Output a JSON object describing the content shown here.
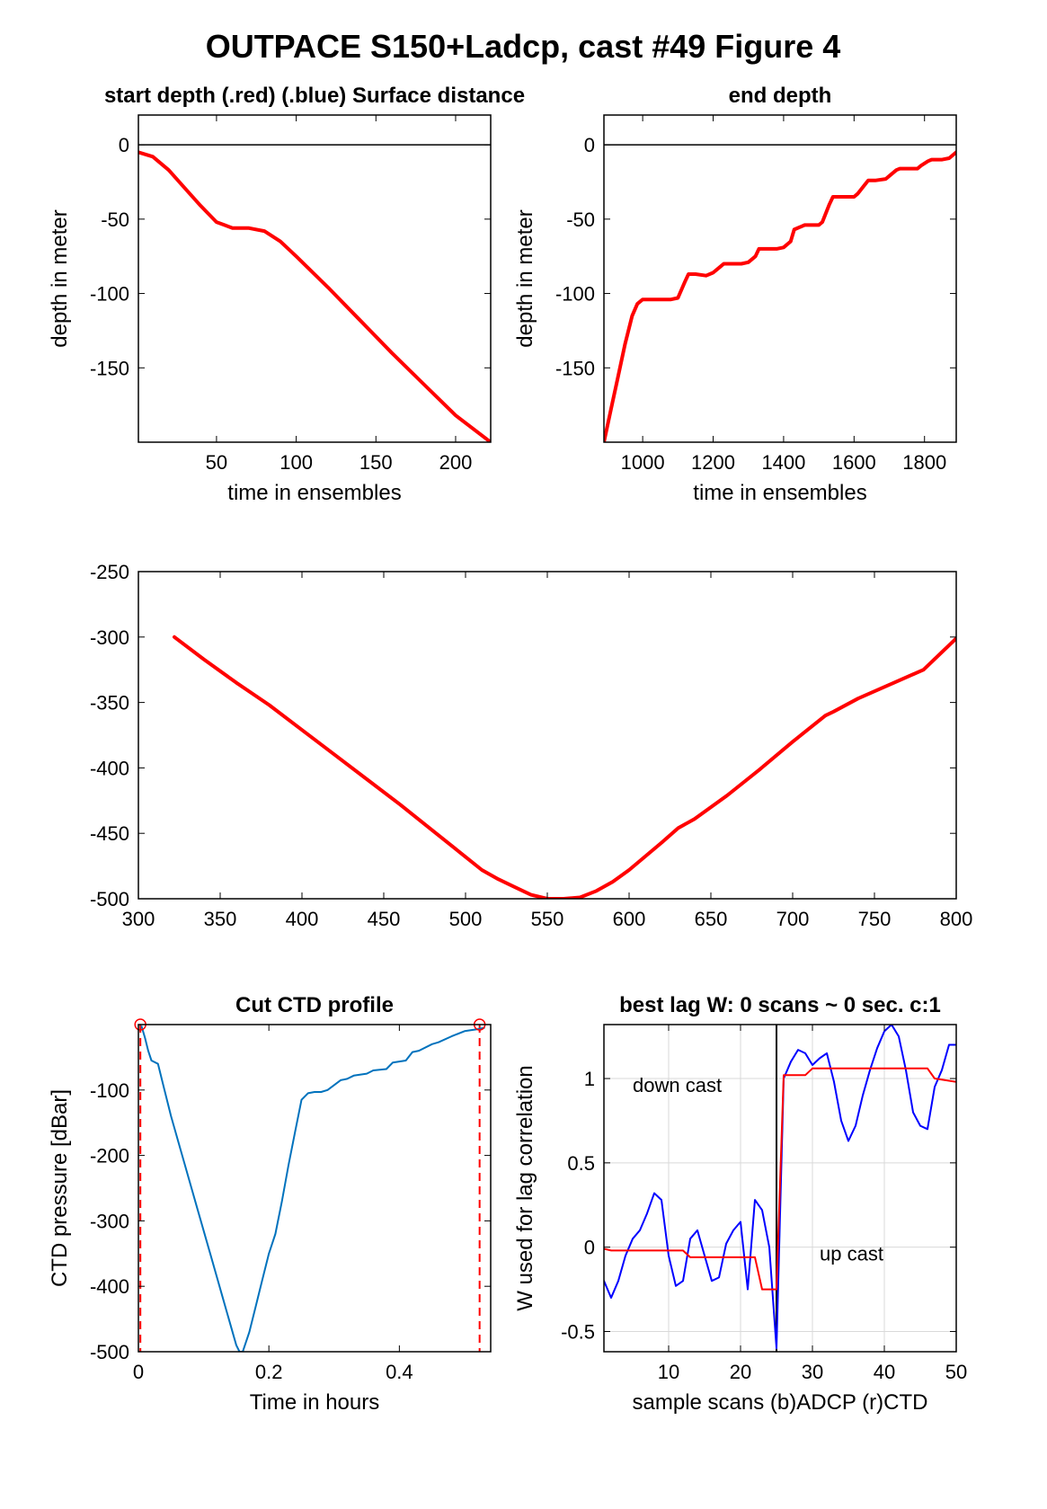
{
  "figure": {
    "title": "OUTPACE S150+Ladcp, cast #49   Figure 4"
  },
  "chart_data": [
    {
      "id": "p1",
      "type": "line",
      "title": "start depth (.red) (.blue) Surface distance",
      "xlabel": "time in ensembles",
      "ylabel": "depth in meter",
      "xlim": [
        1,
        222
      ],
      "ylim": [
        -200,
        20
      ],
      "xticks": [
        50,
        100,
        150,
        200
      ],
      "yticks": [
        0,
        -50,
        -100,
        -150
      ],
      "grid": false,
      "hline": 0,
      "series": [
        {
          "color": "#ff0000",
          "width": 4,
          "x": [
            1,
            10,
            20,
            30,
            40,
            50,
            55,
            60,
            70,
            80,
            90,
            100,
            120,
            140,
            160,
            180,
            200,
            222
          ],
          "y": [
            -5,
            -8,
            -17,
            -29,
            -41,
            -52,
            -54,
            -56,
            -56,
            -58,
            -65,
            -75,
            -96,
            -118,
            -140,
            -161,
            -182,
            -200
          ]
        }
      ]
    },
    {
      "id": "p2",
      "type": "line",
      "title": "end depth",
      "xlabel": "time in ensembles",
      "ylabel": "depth in meter",
      "xlim": [
        890,
        1890
      ],
      "ylim": [
        -200,
        20
      ],
      "xticks": [
        1000,
        1200,
        1400,
        1600,
        1800
      ],
      "yticks": [
        0,
        -50,
        -100,
        -150
      ],
      "grid": false,
      "hline": 0,
      "series": [
        {
          "color": "#ff0000",
          "width": 4,
          "x": [
            890,
            910,
            930,
            950,
            970,
            985,
            1000,
            1010,
            1080,
            1100,
            1120,
            1130,
            1150,
            1180,
            1200,
            1220,
            1230,
            1250,
            1280,
            1300,
            1320,
            1330,
            1350,
            1380,
            1400,
            1420,
            1430,
            1460,
            1500,
            1510,
            1530,
            1540,
            1560,
            1600,
            1610,
            1630,
            1640,
            1660,
            1690,
            1700,
            1720,
            1730,
            1750,
            1780,
            1790,
            1810,
            1820,
            1850,
            1870,
            1890
          ],
          "y": [
            -200,
            -178,
            -156,
            -134,
            -115,
            -107,
            -104,
            -104,
            -104,
            -103,
            -92,
            -87,
            -87,
            -88,
            -86,
            -82,
            -80,
            -80,
            -80,
            -79,
            -75,
            -70,
            -70,
            -70,
            -69,
            -65,
            -57,
            -54,
            -54,
            -52,
            -40,
            -35,
            -35,
            -35,
            -33,
            -27,
            -24,
            -24,
            -23,
            -21,
            -17,
            -16,
            -16,
            -16,
            -14,
            -11,
            -10,
            -10,
            -9,
            -5
          ]
        }
      ]
    },
    {
      "id": "p3",
      "type": "line",
      "title": "",
      "xlabel": "",
      "ylabel": "",
      "xlim": [
        300,
        800
      ],
      "ylim": [
        -500,
        -250
      ],
      "xticks": [
        300,
        350,
        400,
        450,
        500,
        550,
        600,
        650,
        700,
        750,
        800
      ],
      "yticks": [
        -250,
        -300,
        -350,
        -400,
        -450,
        -500
      ],
      "grid": false,
      "series": [
        {
          "color": "#ff0000",
          "width": 4,
          "x": [
            322,
            340,
            360,
            380,
            400,
            420,
            440,
            460,
            480,
            500,
            510,
            520,
            530,
            540,
            550,
            560,
            570,
            580,
            590,
            600,
            620,
            630,
            640,
            660,
            680,
            700,
            720,
            725,
            740,
            760,
            780,
            800
          ],
          "y": [
            -300,
            -317,
            -335,
            -352,
            -371,
            -390,
            -409,
            -428,
            -448,
            -468,
            -478,
            -485,
            -491,
            -497,
            -500,
            -500,
            -499,
            -494,
            -487,
            -478,
            -457,
            -446,
            -439,
            -421,
            -401,
            -380,
            -360,
            -357,
            -347,
            -336,
            -325,
            -301
          ]
        }
      ]
    },
    {
      "id": "p4",
      "type": "line",
      "title": "Cut CTD profile",
      "xlabel": "Time in hours",
      "ylabel": "CTD pressure [dBar]",
      "xlim": [
        0,
        0.54
      ],
      "ylim": [
        -500,
        0
      ],
      "xticks": [
        0,
        0.2,
        0.4
      ],
      "xticklabels": [
        "0",
        "0.2",
        "0.4"
      ],
      "yticks": [
        -100,
        -200,
        -300,
        -400,
        -500
      ],
      "grid": false,
      "series": [
        {
          "color": "#0072bd",
          "width": 2,
          "x": [
            0.005,
            0.01,
            0.015,
            0.02,
            0.03,
            0.04,
            0.05,
            0.07,
            0.09,
            0.11,
            0.13,
            0.15,
            0.155,
            0.16,
            0.17,
            0.18,
            0.19,
            0.2,
            0.21,
            0.22,
            0.23,
            0.24,
            0.25,
            0.26,
            0.27,
            0.28,
            0.29,
            0.31,
            0.32,
            0.33,
            0.35,
            0.36,
            0.38,
            0.39,
            0.41,
            0.42,
            0.43,
            0.45,
            0.46,
            0.48,
            0.5,
            0.52,
            0.53
          ],
          "y": [
            -3,
            -20,
            -40,
            -55,
            -60,
            -100,
            -140,
            -210,
            -280,
            -350,
            -420,
            -490,
            -500,
            -500,
            -470,
            -430,
            -390,
            -350,
            -320,
            -270,
            -215,
            -165,
            -115,
            -105,
            -103,
            -103,
            -100,
            -85,
            -83,
            -78,
            -75,
            -70,
            -68,
            -58,
            -55,
            -42,
            -40,
            -30,
            -27,
            -18,
            -10,
            -7,
            -5
          ]
        }
      ],
      "vlines": [
        {
          "x": 0.003,
          "color": "#ff0000"
        },
        {
          "x": 0.523,
          "color": "#ff0000"
        }
      ],
      "markers": [
        {
          "x": 0.003,
          "y": 0,
          "color": "#ff0000"
        },
        {
          "x": 0.523,
          "y": 0,
          "color": "#ff0000"
        }
      ]
    },
    {
      "id": "p5",
      "type": "line",
      "title": "best lag W: 0 scans ~ 0 sec.  c:1",
      "xlabel": "sample scans (b)ADCP (r)CTD",
      "ylabel": "W used for lag correlation",
      "xlim": [
        1,
        50
      ],
      "ylim": [
        -0.62,
        1.32
      ],
      "xticks": [
        10,
        20,
        30,
        40,
        50
      ],
      "yticks": [
        1,
        0.5,
        0,
        -0.5
      ],
      "yticklabels": [
        "1",
        "0.5",
        "0",
        "-0.5"
      ],
      "grid": true,
      "vline": 25,
      "annotations": [
        {
          "text": "down cast",
          "x": 5,
          "y": 0.92
        },
        {
          "text": "up cast",
          "x": 31,
          "y": -0.08
        }
      ],
      "series": [
        {
          "color": "#0000ff",
          "width": 2,
          "x": [
            1,
            2,
            3,
            4,
            5,
            6,
            7,
            8,
            9,
            10,
            11,
            12,
            13,
            14,
            15,
            16,
            17,
            18,
            19,
            20,
            21,
            22,
            23,
            24,
            25,
            26,
            27,
            28,
            29,
            30,
            31,
            32,
            33,
            34,
            35,
            36,
            37,
            38,
            39,
            40,
            41,
            42,
            43,
            44,
            45,
            46,
            47,
            48,
            49,
            50
          ],
          "y": [
            -0.2,
            -0.3,
            -0.2,
            -0.05,
            0.05,
            0.1,
            0.2,
            0.32,
            0.28,
            -0.05,
            -0.23,
            -0.2,
            0.05,
            0.1,
            -0.05,
            -0.2,
            -0.18,
            0.02,
            0.1,
            0.15,
            -0.25,
            0.28,
            0.22,
            0.0,
            -0.6,
            1.0,
            1.1,
            1.17,
            1.15,
            1.08,
            1.12,
            1.15,
            0.98,
            0.75,
            0.63,
            0.72,
            0.9,
            1.05,
            1.18,
            1.28,
            1.32,
            1.25,
            1.05,
            0.8,
            0.72,
            0.7,
            0.95,
            1.05,
            1.2,
            1.2
          ]
        },
        {
          "color": "#ff0000",
          "width": 2,
          "x": [
            1,
            2,
            12,
            13,
            22,
            23,
            25,
            26,
            29,
            30,
            46,
            47,
            50
          ],
          "y": [
            -0.01,
            -0.02,
            -0.02,
            -0.06,
            -0.06,
            -0.25,
            -0.25,
            1.02,
            1.02,
            1.06,
            1.06,
            1.0,
            0.98
          ]
        }
      ]
    }
  ]
}
